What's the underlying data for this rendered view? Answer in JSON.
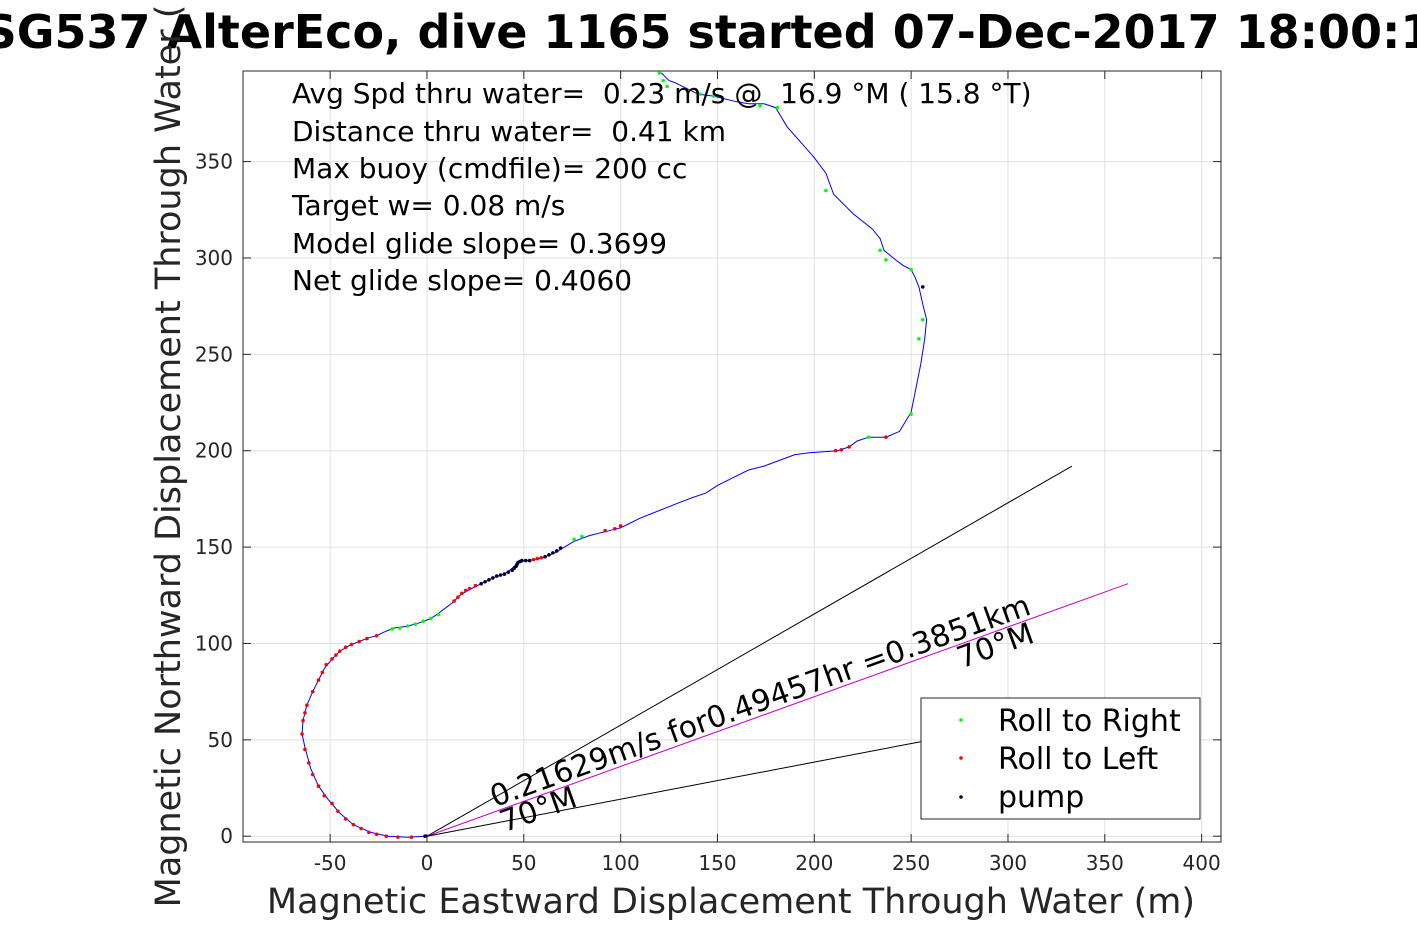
{
  "chart_data": {
    "type": "scatter",
    "title": "SG537 AlterEco, dive 1165 started 07-Dec-2017 18:00:1",
    "xlabel": "Magnetic Eastward Displacement Through Water (m)",
    "ylabel": "Magnetic Northward Displacement Through Water (",
    "xlim": [
      -95,
      410
    ],
    "ylim": [
      -3,
      397
    ],
    "xticks": [
      -50,
      0,
      50,
      100,
      150,
      200,
      250,
      300,
      350,
      400
    ],
    "yticks": [
      0,
      50,
      100,
      150,
      200,
      250,
      300,
      350
    ],
    "grid": true,
    "legend_position": "lower-right",
    "stats_text": [
      "Avg Spd thru water=  0.23 m/s @  16.9 °M ( 15.8 °T)",
      "Distance thru water=  0.41 km",
      "Max buoy (cmdfile)= 200 cc",
      "Target w= 0.08 m/s",
      "Model glide slope= 0.3699",
      "Net glide slope= 0.4060"
    ],
    "track": {
      "color": "#0000ff",
      "x": [
        -1,
        -10,
        -20,
        -29,
        -38,
        -45,
        -51,
        -56,
        -60,
        -63,
        -64.5,
        -64,
        -62,
        -59,
        -56,
        -53,
        -49,
        -45,
        -40,
        -35,
        -30,
        -26,
        -22,
        -17,
        -10,
        -3,
        2,
        5,
        9,
        13,
        17,
        22,
        28,
        34,
        40,
        44,
        46,
        47,
        48,
        51,
        55,
        60,
        66,
        71,
        76,
        84,
        92,
        100,
        104,
        110,
        120,
        130,
        138,
        144,
        150,
        158,
        166,
        174,
        182,
        190,
        198,
        205,
        212,
        218,
        222,
        228,
        237,
        244,
        250,
        255,
        257,
        258,
        256,
        254,
        252,
        250,
        246,
        242,
        236,
        234,
        230,
        220,
        210,
        206,
        200,
        193,
        186,
        180,
        174,
        166,
        160,
        148,
        140,
        136,
        132,
        128,
        125,
        123,
        121
      ],
      "y": [
        0,
        -0.5,
        0,
        2,
        6,
        12,
        19,
        26,
        35,
        46,
        53,
        60,
        68,
        75,
        81,
        87,
        92,
        96,
        99,
        101,
        103,
        104,
        106,
        108,
        109,
        111,
        113,
        115,
        118,
        121,
        125,
        128,
        131,
        134,
        136,
        139,
        141,
        142.5,
        143,
        143,
        143.5,
        144.5,
        147,
        150,
        153,
        156,
        158,
        160,
        162,
        165,
        169,
        173,
        176,
        178,
        182,
        186,
        190,
        192,
        195,
        198,
        199,
        199.5,
        200,
        202,
        205,
        207,
        207,
        210,
        220,
        245,
        258,
        268,
        276,
        285,
        290,
        294,
        296,
        299,
        304,
        310,
        315,
        323,
        333,
        344,
        352,
        360,
        368,
        378,
        380,
        380,
        381,
        384,
        385,
        387,
        389,
        391,
        392,
        394,
        396
      ],
      "markers": [
        {
          "x": -1,
          "y": 0,
          "type": "pump"
        },
        {
          "x": -8,
          "y": -0.5,
          "type": "left"
        },
        {
          "x": -15,
          "y": -0.5,
          "type": "left"
        },
        {
          "x": -21,
          "y": 0,
          "type": "left"
        },
        {
          "x": -26,
          "y": 1,
          "type": "left"
        },
        {
          "x": -30,
          "y": 2,
          "type": "left"
        },
        {
          "x": -34,
          "y": 4,
          "type": "left"
        },
        {
          "x": -38,
          "y": 6,
          "type": "left"
        },
        {
          "x": -42,
          "y": 9,
          "type": "left"
        },
        {
          "x": -46,
          "y": 13,
          "type": "left"
        },
        {
          "x": -49,
          "y": 17,
          "type": "left"
        },
        {
          "x": -53,
          "y": 21,
          "type": "left"
        },
        {
          "x": -56,
          "y": 26,
          "type": "left"
        },
        {
          "x": -59,
          "y": 32,
          "type": "left"
        },
        {
          "x": -61,
          "y": 38,
          "type": "left"
        },
        {
          "x": -63,
          "y": 45,
          "type": "left"
        },
        {
          "x": -64.5,
          "y": 53,
          "type": "left"
        },
        {
          "x": -64,
          "y": 60,
          "type": "left"
        },
        {
          "x": -63,
          "y": 64,
          "type": "left"
        },
        {
          "x": -62,
          "y": 68,
          "type": "left"
        },
        {
          "x": -59,
          "y": 75,
          "type": "left"
        },
        {
          "x": -56,
          "y": 81,
          "type": "left"
        },
        {
          "x": -54,
          "y": 85,
          "type": "left"
        },
        {
          "x": -52,
          "y": 89,
          "type": "left"
        },
        {
          "x": -49,
          "y": 92,
          "type": "left"
        },
        {
          "x": -47,
          "y": 94,
          "type": "left"
        },
        {
          "x": -45,
          "y": 96,
          "type": "left"
        },
        {
          "x": -42,
          "y": 98,
          "type": "left"
        },
        {
          "x": -39,
          "y": 99.5,
          "type": "left"
        },
        {
          "x": -35,
          "y": 101,
          "type": "left"
        },
        {
          "x": -31,
          "y": 102.5,
          "type": "left"
        },
        {
          "x": -26,
          "y": 104,
          "type": "left"
        },
        {
          "x": -18,
          "y": 107.5,
          "type": "right"
        },
        {
          "x": -14,
          "y": 108,
          "type": "right"
        },
        {
          "x": -10,
          "y": 109,
          "type": "right"
        },
        {
          "x": -6,
          "y": 110,
          "type": "right"
        },
        {
          "x": -2,
          "y": 111.5,
          "type": "right"
        },
        {
          "x": 2,
          "y": 113,
          "type": "right"
        },
        {
          "x": 6,
          "y": 115,
          "type": "right"
        },
        {
          "x": 14,
          "y": 122,
          "type": "left"
        },
        {
          "x": 16,
          "y": 124,
          "type": "left"
        },
        {
          "x": 18,
          "y": 126,
          "type": "left"
        },
        {
          "x": 20,
          "y": 127.5,
          "type": "left"
        },
        {
          "x": 22,
          "y": 128.5,
          "type": "left"
        },
        {
          "x": 25,
          "y": 130,
          "type": "left"
        },
        {
          "x": 28,
          "y": 131,
          "type": "pump"
        },
        {
          "x": 30,
          "y": 132,
          "type": "pump"
        },
        {
          "x": 32,
          "y": 133,
          "type": "pump"
        },
        {
          "x": 34,
          "y": 134,
          "type": "pump"
        },
        {
          "x": 36,
          "y": 135,
          "type": "pump"
        },
        {
          "x": 38,
          "y": 135.5,
          "type": "pump"
        },
        {
          "x": 40,
          "y": 136,
          "type": "pump"
        },
        {
          "x": 42,
          "y": 137,
          "type": "pump"
        },
        {
          "x": 44,
          "y": 138,
          "type": "pump"
        },
        {
          "x": 45,
          "y": 139,
          "type": "pump"
        },
        {
          "x": 46,
          "y": 140,
          "type": "pump"
        },
        {
          "x": 46.5,
          "y": 141,
          "type": "pump"
        },
        {
          "x": 47,
          "y": 142,
          "type": "pump"
        },
        {
          "x": 48,
          "y": 142.5,
          "type": "pump"
        },
        {
          "x": 49,
          "y": 143,
          "type": "pump"
        },
        {
          "x": 51,
          "y": 143,
          "type": "pump"
        },
        {
          "x": 53,
          "y": 143,
          "type": "pump"
        },
        {
          "x": 55,
          "y": 143.5,
          "type": "left"
        },
        {
          "x": 57,
          "y": 144,
          "type": "left"
        },
        {
          "x": 59,
          "y": 144.5,
          "type": "left"
        },
        {
          "x": 61,
          "y": 145,
          "type": "pump"
        },
        {
          "x": 63,
          "y": 146,
          "type": "pump"
        },
        {
          "x": 65,
          "y": 147,
          "type": "pump"
        },
        {
          "x": 67,
          "y": 148,
          "type": "pump"
        },
        {
          "x": 69,
          "y": 149.5,
          "type": "pump"
        },
        {
          "x": 76,
          "y": 154,
          "type": "right"
        },
        {
          "x": 80,
          "y": 155.5,
          "type": "right"
        },
        {
          "x": 92,
          "y": 158.5,
          "type": "left"
        },
        {
          "x": 97,
          "y": 159.5,
          "type": "left"
        },
        {
          "x": 100,
          "y": 161,
          "type": "left"
        },
        {
          "x": 211,
          "y": 200,
          "type": "left"
        },
        {
          "x": 214,
          "y": 200.5,
          "type": "left"
        },
        {
          "x": 218,
          "y": 202,
          "type": "left"
        },
        {
          "x": 228,
          "y": 207,
          "type": "right"
        },
        {
          "x": 237,
          "y": 207,
          "type": "left"
        },
        {
          "x": 250,
          "y": 219,
          "type": "right"
        },
        {
          "x": 254,
          "y": 258,
          "type": "right"
        },
        {
          "x": 256,
          "y": 268,
          "type": "right"
        },
        {
          "x": 256,
          "y": 285,
          "type": "pump"
        },
        {
          "x": 250,
          "y": 294,
          "type": "right"
        },
        {
          "x": 237,
          "y": 299,
          "type": "right"
        },
        {
          "x": 234,
          "y": 304,
          "type": "right"
        },
        {
          "x": 206,
          "y": 335,
          "type": "right"
        },
        {
          "x": 181,
          "y": 378,
          "type": "right"
        },
        {
          "x": 172,
          "y": 379,
          "type": "right"
        },
        {
          "x": 148,
          "y": 384,
          "type": "right"
        },
        {
          "x": 141,
          "y": 385,
          "type": "right"
        },
        {
          "x": 124,
          "y": 389,
          "type": "right"
        },
        {
          "x": 122,
          "y": 392,
          "type": "right"
        },
        {
          "x": 120,
          "y": 396,
          "type": "right"
        }
      ]
    },
    "lines": [
      {
        "name": "upper",
        "color": "#000000",
        "x": [
          0,
          333
        ],
        "y": [
          0,
          192
        ]
      },
      {
        "name": "middle",
        "color": "#cc00cc",
        "x": [
          0,
          362
        ],
        "y": [
          0,
          131
        ]
      },
      {
        "name": "lower",
        "color": "#000000",
        "x": [
          0,
          260
        ],
        "y": [
          0,
          50
        ]
      }
    ],
    "annotations": [
      {
        "text": "0.21629m/s for0.49457hr =0.3851km",
        "x": 35,
        "y": 15,
        "angle_deg": -19.8
      },
      {
        "text": "70°M",
        "x": 276,
        "y": 87,
        "angle_deg": -19.8
      },
      {
        "text": "70°M",
        "x": 40,
        "y": 2,
        "angle_deg": -19.8
      }
    ],
    "legend": [
      {
        "label": "Roll to Right",
        "color": "#00ff00"
      },
      {
        "label": "Roll to Left",
        "color": "#ff0000"
      },
      {
        "label": "pump",
        "color": "#000033"
      }
    ]
  }
}
